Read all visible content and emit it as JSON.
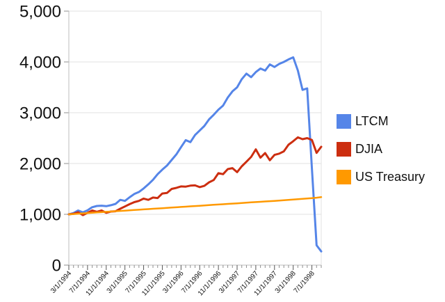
{
  "chart_data": {
    "type": "line",
    "title": "",
    "xlabel": "",
    "ylabel": "",
    "ylim": [
      0,
      5000
    ],
    "grid": true,
    "legend_position": "right",
    "y_tick_labels": [
      "0",
      "1,000",
      "2,000",
      "3,000",
      "4,000",
      "5,000"
    ],
    "x_tick_labels": [
      "3/1/1994",
      "7/1/1994",
      "11/1/1994",
      "3/1/1995",
      "7/1/1995",
      "11/1/1995",
      "3/1/1996",
      "7/1/1996",
      "11/1/1996",
      "3/1/1997",
      "7/1/1997",
      "11/1/1997",
      "3/1/1998",
      "7/1/1998"
    ],
    "x_major_tick_interval": 4,
    "x_minor_tick_unit": "month",
    "series": [
      {
        "name": "LTCM",
        "color": "#5585e8",
        "values": [
          1000,
          1025,
          1075,
          1040,
          1080,
          1140,
          1165,
          1170,
          1160,
          1180,
          1205,
          1285,
          1265,
          1335,
          1400,
          1440,
          1510,
          1590,
          1680,
          1790,
          1880,
          1960,
          2070,
          2180,
          2320,
          2460,
          2420,
          2560,
          2650,
          2740,
          2870,
          2960,
          3060,
          3140,
          3300,
          3420,
          3500,
          3660,
          3770,
          3700,
          3800,
          3870,
          3830,
          3950,
          3900,
          3960,
          4000,
          4050,
          4090,
          3830,
          3450,
          3480,
          1900,
          390,
          270
        ]
      },
      {
        "name": "DJIA",
        "color": "#cc2e10",
        "values": [
          1000,
          1010,
          1040,
          985,
          1030,
          1075,
          1050,
          1075,
          1030,
          1055,
          1060,
          1110,
          1155,
          1200,
          1240,
          1265,
          1310,
          1285,
          1330,
          1320,
          1410,
          1420,
          1500,
          1520,
          1550,
          1545,
          1565,
          1570,
          1535,
          1560,
          1630,
          1675,
          1810,
          1790,
          1890,
          1910,
          1830,
          1945,
          2035,
          2130,
          2280,
          2115,
          2205,
          2065,
          2170,
          2195,
          2240,
          2370,
          2440,
          2515,
          2480,
          2500,
          2465,
          2210,
          2330
        ]
      },
      {
        "name": "US Treasury",
        "color": "#ff9900",
        "values": [
          1000,
          1006,
          1013,
          1019,
          1025,
          1031,
          1037,
          1043,
          1049,
          1055,
          1061,
          1067,
          1073,
          1079,
          1085,
          1091,
          1097,
          1103,
          1109,
          1115,
          1121,
          1127,
          1133,
          1139,
          1145,
          1151,
          1157,
          1163,
          1169,
          1175,
          1181,
          1187,
          1193,
          1199,
          1205,
          1211,
          1217,
          1223,
          1229,
          1235,
          1241,
          1247,
          1253,
          1259,
          1265,
          1271,
          1277,
          1284,
          1291,
          1298,
          1305,
          1312,
          1319,
          1328,
          1338
        ]
      }
    ]
  }
}
